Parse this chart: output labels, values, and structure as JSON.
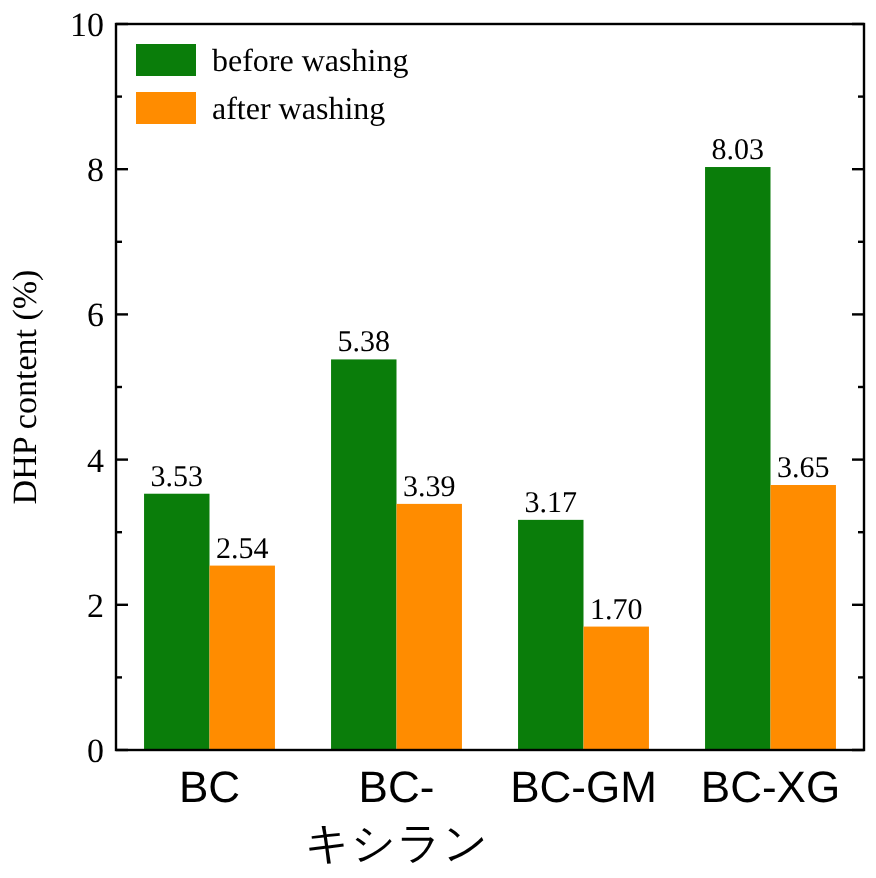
{
  "chart_data": {
    "type": "bar",
    "ylabel": "DHP content (%)",
    "categories": [
      "BC",
      "BC-キシラン",
      "BC-GM",
      "BC-XG"
    ],
    "series": [
      {
        "name": "before washing",
        "color": "#0a7d0a",
        "values": [
          3.53,
          5.38,
          3.17,
          8.03
        ]
      },
      {
        "name": "after washing",
        "color": "#ff8c00",
        "values": [
          2.54,
          3.39,
          1.7,
          3.65
        ]
      }
    ],
    "value_labels": [
      [
        "3.53",
        "5.38",
        "3.17",
        "8.03"
      ],
      [
        "2.54",
        "3.39",
        "1.70",
        "3.65"
      ]
    ],
    "ylim": [
      0,
      10
    ],
    "yticks": [
      0,
      {
        "value": 1,
        "label": null
      },
      2,
      {
        "value": 3,
        "label": null
      },
      4,
      {
        "value": 5,
        "label": null
      },
      6,
      {
        "value": 7,
        "label": null
      },
      8,
      {
        "value": 9,
        "label": null
      },
      10
    ],
    "legend": "top left",
    "grid": false
  }
}
